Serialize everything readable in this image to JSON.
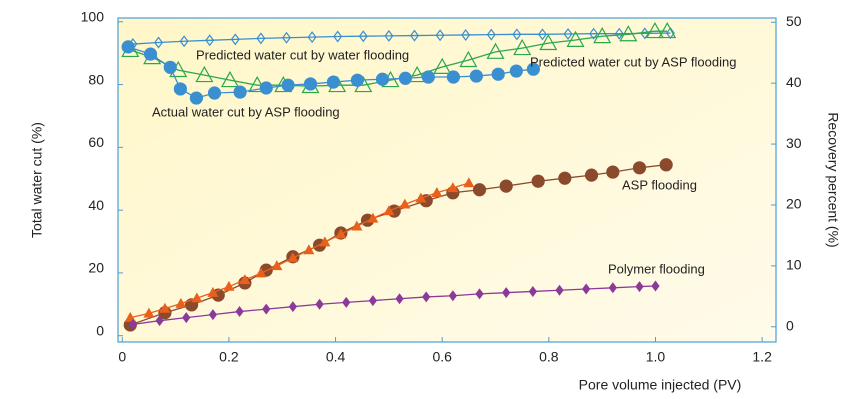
{
  "chart_data": {
    "type": "scatter",
    "x_label": "Pore volume injected (PV)",
    "y_label": "Total water cut (%)",
    "y2_label": "Recovery percent (%)",
    "xlim": [
      -0.008,
      1.226
    ],
    "ylim": [
      -2,
      101.2
    ],
    "y2lim": [
      -2.5,
      50.7
    ],
    "xticks": [
      0,
      0.2,
      0.4,
      0.6,
      0.8,
      {
        "value": 1,
        "label": "1.0"
      },
      1.2
    ],
    "yticks": [
      0,
      20,
      40,
      60,
      80,
      100
    ],
    "y2ticks": [
      0,
      10,
      20,
      30,
      40,
      50
    ],
    "annotations": [
      "Predicted water cut by water flooding",
      "Predicted water cut by ASP flooding",
      "Actual water cut by ASP flooding",
      "ASP flooding",
      "Polymer flooding"
    ],
    "series": [
      {
        "name": "Predicted water cut by water flooding",
        "color": "#3a8fd0",
        "marker": "diamond",
        "filled": false,
        "axis": "y",
        "x": [
          0.02,
          0.068,
          0.116,
          0.164,
          0.212,
          0.26,
          0.308,
          0.356,
          0.404,
          0.452,
          0.5,
          0.548,
          0.596,
          0.644,
          0.692,
          0.74,
          0.788,
          0.836,
          0.884,
          0.932,
          0.98,
          1.028
        ],
        "values": [
          92.9,
          93.4,
          93.8,
          94.1,
          94.4,
          94.7,
          94.9,
          95.1,
          95.3,
          95.4,
          95.5,
          95.6,
          95.7,
          95.8,
          95.9,
          96,
          96,
          96.1,
          96.2,
          96.2,
          96.3,
          96.4
        ]
      },
      {
        "name": "Predicted water cut by ASP flooding",
        "color": "#2aa84a",
        "marker": "triangle",
        "filled": false,
        "axis": "y",
        "x": [
          0.015,
          0.056,
          0.105,
          0.154,
          0.202,
          0.253,
          0.302,
          0.353,
          0.403,
          0.452,
          0.503,
          0.553,
          0.6,
          0.649,
          0.7,
          0.75,
          0.799,
          0.85,
          0.9,
          0.949,
          0.999,
          1.022
        ],
        "values": [
          91,
          88.7,
          84.6,
          83,
          81.4,
          79.8,
          79.8,
          79.5,
          79.8,
          79.8,
          81.4,
          83,
          85.6,
          87.8,
          90.4,
          91.6,
          93.2,
          94.2,
          95.4,
          96,
          97,
          97
        ]
      },
      {
        "name": "Actual water cut by ASP flooding",
        "color": "#3a8fd0",
        "marker": "circle",
        "filled": true,
        "axis": "y",
        "x": [
          0.011,
          0.053,
          0.09,
          0.109,
          0.139,
          0.173,
          0.221,
          0.27,
          0.311,
          0.353,
          0.396,
          0.441,
          0.488,
          0.531,
          0.574,
          0.621,
          0.664,
          0.705,
          0.739,
          0.771
        ],
        "values": [
          92,
          89.7,
          85.5,
          78.6,
          75.7,
          77.3,
          77.6,
          78.9,
          79.8,
          80.2,
          80.8,
          81.4,
          81.7,
          82,
          82.4,
          82.4,
          82.7,
          83.3,
          84.3,
          84.9
        ]
      },
      {
        "name": "ASP flooding",
        "color": "#8b4a2b",
        "marker": "circle",
        "filled": true,
        "axis": "y2",
        "x": [
          0.015,
          0.08,
          0.13,
          0.18,
          0.23,
          0.27,
          0.32,
          0.37,
          0.41,
          0.46,
          0.51,
          0.57,
          0.62,
          0.67,
          0.72,
          0.78,
          0.83,
          0.88,
          0.92,
          0.97,
          1.02
        ],
        "values": [
          0.3,
          2.3,
          3.6,
          5.2,
          7.2,
          9.3,
          11.5,
          13.4,
          15.4,
          17.5,
          19,
          20.7,
          22,
          22.5,
          23.1,
          23.9,
          24.4,
          24.9,
          25.4,
          26.1,
          26.6
        ]
      },
      {
        "color": "#e8601c",
        "marker": "triangle",
        "filled": true,
        "axis": "y2",
        "x": [
          0.015,
          0.05,
          0.08,
          0.11,
          0.14,
          0.17,
          0.2,
          0.23,
          0.26,
          0.29,
          0.32,
          0.35,
          0.38,
          0.41,
          0.44,
          0.47,
          0.5,
          0.53,
          0.56,
          0.59,
          0.62,
          0.65
        ],
        "values": [
          1.5,
          2.2,
          3,
          3.8,
          4.7,
          5.6,
          6.6,
          7.7,
          8.8,
          10,
          11.3,
          12.6,
          13.9,
          15.2,
          16.5,
          17.8,
          19,
          20.1,
          21.1,
          22,
          22.8,
          23.6
        ]
      },
      {
        "name": "Polymer flooding",
        "color": "#8b3a9a",
        "marker": "diamond",
        "filled": true,
        "axis": "y2",
        "x": [
          0.02,
          0.07,
          0.12,
          0.17,
          0.22,
          0.27,
          0.32,
          0.37,
          0.42,
          0.47,
          0.52,
          0.57,
          0.62,
          0.67,
          0.72,
          0.77,
          0.82,
          0.87,
          0.92,
          0.97,
          1.0
        ],
        "values": [
          0.4,
          1.0,
          1.5,
          2.0,
          2.5,
          2.9,
          3.3,
          3.7,
          4.0,
          4.3,
          4.6,
          4.9,
          5.1,
          5.4,
          5.6,
          5.8,
          6.0,
          6.2,
          6.4,
          6.6,
          6.7
        ]
      }
    ]
  }
}
